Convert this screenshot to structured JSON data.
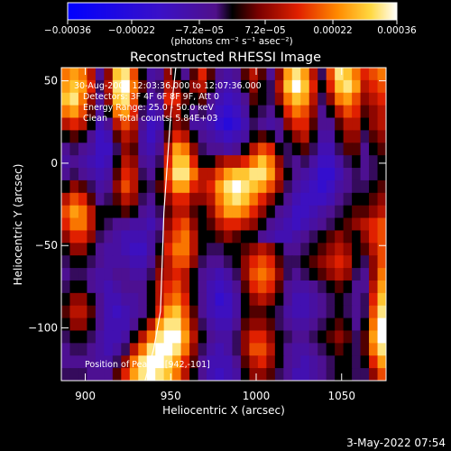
{
  "chart_data": {
    "type": "heatmap",
    "title": "Reconstructed RHESSI Image",
    "xlabel": "Heliocentric X (arcsec)",
    "ylabel": "Heliocentric Y (arcsec)",
    "xlim": [
      886,
      1076
    ],
    "ylim": [
      -132,
      58
    ],
    "x_ticks": [
      900,
      950,
      1000,
      1050
    ],
    "y_ticks": [
      50,
      0,
      -50,
      -100
    ],
    "x_tick_labels": [
      "900",
      "950",
      "1000",
      "1050"
    ],
    "y_tick_labels": [
      "50",
      "0",
      "−50",
      "−100"
    ],
    "colorbar": {
      "range": [
        -0.00036,
        0.00036
      ],
      "ticks": [
        -0.00036,
        -0.00022,
        -7.2e-05,
        7.2e-05,
        0.00022,
        0.00036
      ],
      "tick_labels": [
        "−0.00036",
        "−0.00022",
        "−7.2e−05",
        "7.2e−05",
        "0.00022",
        "0.00036"
      ],
      "unit_label": "(photons cm⁻² s⁻¹ asec⁻²)"
    },
    "annotations": [
      "30-Aug-2004 12:03:36.000 to 12:07:36.000",
      "Detectors: 3F 4F 6F 8F 9F, Att 0",
      "Energy Range: 25.0 - 50.0 keV",
      "Clean    Total counts: 5.84E+03",
      "Position of Peak = [942,-101]"
    ],
    "peak": [
      942,
      -101
    ],
    "grid": false,
    "limb_curve": [
      [
        953,
        58
      ],
      [
        950,
        30
      ],
      [
        948,
        0
      ],
      [
        946,
        -30
      ],
      [
        945,
        -60
      ],
      [
        944,
        -90
      ],
      [
        940,
        -113
      ],
      [
        935,
        -132
      ]
    ],
    "values": [
      [
        0.6,
        0.7,
        0.6,
        0.3,
        -0.2,
        0.2,
        0.8,
        0.9,
        0.5,
        0.0,
        -0.3,
        -0.2,
        0.2,
        0.0,
        -0.2,
        0.1,
        0.4,
        0.1,
        -0.2,
        -0.3,
        -0.2,
        0.1,
        0.3,
        0.1,
        -0.2,
        0.2,
        0.7,
        0.9,
        0.7,
        0.3,
        -0.1,
        0.5,
        0.9,
        0.8,
        0.6,
        0.4,
        0.5,
        0.6
      ],
      [
        0.7,
        0.8,
        0.7,
        0.4,
        -0.1,
        0.3,
        0.9,
        1.0,
        0.6,
        0.1,
        -0.2,
        -0.1,
        0.3,
        0.2,
        0.0,
        0.2,
        0.3,
        0.0,
        -0.3,
        -0.4,
        -0.3,
        0.0,
        0.2,
        0.0,
        -0.1,
        0.3,
        0.8,
        1.0,
        0.8,
        0.4,
        0.0,
        0.4,
        0.8,
        0.9,
        0.7,
        0.3,
        0.4,
        0.5
      ],
      [
        0.8,
        0.9,
        0.6,
        0.2,
        -0.2,
        0.2,
        0.8,
        0.9,
        0.5,
        0.0,
        -0.3,
        -0.2,
        0.4,
        0.4,
        0.1,
        0.0,
        0.1,
        -0.2,
        -0.4,
        -0.5,
        -0.4,
        -0.2,
        0.1,
        0.0,
        -0.1,
        0.2,
        0.6,
        0.8,
        0.7,
        0.3,
        -0.1,
        0.2,
        0.6,
        0.7,
        0.5,
        0.2,
        0.3,
        0.4
      ],
      [
        0.6,
        0.7,
        0.5,
        0.1,
        -0.3,
        0.0,
        0.6,
        0.7,
        0.4,
        -0.1,
        -0.4,
        -0.3,
        0.2,
        0.3,
        0.0,
        -0.2,
        -0.1,
        -0.3,
        -0.5,
        -0.6,
        -0.5,
        -0.3,
        0.0,
        -0.1,
        -0.2,
        0.0,
        0.4,
        0.6,
        0.5,
        0.2,
        -0.2,
        0.0,
        0.3,
        0.5,
        0.4,
        0.1,
        0.2,
        0.3
      ],
      [
        0.3,
        0.4,
        0.3,
        0.0,
        -0.4,
        -0.2,
        0.3,
        0.5,
        0.3,
        -0.2,
        -0.5,
        -0.4,
        0.0,
        0.2,
        0.1,
        -0.3,
        -0.3,
        -0.4,
        -0.6,
        -0.7,
        -0.6,
        -0.4,
        -0.1,
        -0.2,
        -0.3,
        -0.2,
        0.2,
        0.4,
        0.4,
        0.1,
        -0.2,
        -0.2,
        0.1,
        0.3,
        0.3,
        0.0,
        0.2,
        0.3
      ],
      [
        0.0,
        0.1,
        0.0,
        -0.2,
        -0.5,
        -0.4,
        0.1,
        0.3,
        0.2,
        -0.3,
        -0.5,
        -0.3,
        0.1,
        0.4,
        0.3,
        0.0,
        -0.2,
        -0.3,
        -0.4,
        -0.5,
        -0.4,
        -0.3,
        0.0,
        0.1,
        0.0,
        -0.2,
        0.0,
        0.2,
        0.3,
        0.0,
        -0.3,
        -0.3,
        0.0,
        0.2,
        0.2,
        -0.1,
        0.1,
        0.2
      ],
      [
        -0.2,
        -0.1,
        -0.2,
        -0.3,
        -0.5,
        -0.5,
        -0.1,
        0.2,
        0.1,
        -0.3,
        -0.4,
        -0.2,
        0.3,
        0.7,
        0.6,
        0.2,
        -0.1,
        -0.2,
        -0.2,
        -0.3,
        -0.2,
        0.0,
        0.3,
        0.5,
        0.4,
        0.0,
        -0.1,
        0.0,
        0.1,
        -0.1,
        -0.4,
        -0.4,
        -0.1,
        0.1,
        0.1,
        -0.2,
        0.0,
        0.1
      ],
      [
        -0.3,
        -0.2,
        -0.3,
        -0.4,
        -0.5,
        -0.4,
        0.0,
        0.3,
        0.2,
        -0.2,
        -0.3,
        -0.1,
        0.4,
        0.8,
        0.8,
        0.4,
        0.0,
        0.0,
        0.2,
        0.3,
        0.3,
        0.4,
        0.6,
        0.8,
        0.6,
        0.2,
        -0.1,
        -0.2,
        -0.1,
        -0.3,
        -0.5,
        -0.5,
        -0.3,
        -0.1,
        0.0,
        -0.2,
        -0.1,
        0.0
      ],
      [
        -0.2,
        -0.1,
        -0.2,
        -0.3,
        -0.4,
        -0.3,
        0.1,
        0.4,
        0.3,
        -0.1,
        -0.2,
        0.0,
        0.5,
        0.9,
        0.9,
        0.6,
        0.3,
        0.3,
        0.5,
        0.7,
        0.8,
        0.8,
        0.9,
        0.9,
        0.7,
        0.3,
        0.0,
        -0.2,
        -0.3,
        -0.4,
        -0.6,
        -0.6,
        -0.4,
        -0.2,
        -0.1,
        -0.2,
        -0.1,
        0.0
      ],
      [
        0.0,
        0.2,
        0.1,
        -0.1,
        -0.3,
        -0.2,
        0.2,
        0.5,
        0.3,
        0.0,
        -0.1,
        0.1,
        0.4,
        0.7,
        0.7,
        0.4,
        0.3,
        0.4,
        0.7,
        0.9,
        1.0,
        0.9,
        0.8,
        0.7,
        0.5,
        0.2,
        -0.1,
        -0.3,
        -0.4,
        -0.5,
        -0.6,
        -0.5,
        -0.3,
        -0.2,
        -0.1,
        -0.1,
        0.0,
        0.1
      ],
      [
        0.3,
        0.5,
        0.4,
        0.1,
        -0.2,
        -0.1,
        0.1,
        0.3,
        0.2,
        -0.1,
        -0.2,
        0.0,
        0.2,
        0.4,
        0.4,
        0.2,
        0.2,
        0.3,
        0.6,
        0.8,
        0.9,
        0.8,
        0.6,
        0.4,
        0.2,
        0.0,
        -0.2,
        -0.4,
        -0.5,
        -0.5,
        -0.5,
        -0.4,
        -0.2,
        -0.1,
        0.0,
        0.0,
        0.1,
        0.2
      ],
      [
        0.5,
        0.7,
        0.6,
        0.3,
        0.0,
        0.0,
        0.0,
        0.1,
        0.0,
        -0.2,
        -0.3,
        -0.1,
        0.1,
        0.3,
        0.3,
        0.1,
        0.0,
        0.2,
        0.5,
        0.7,
        0.7,
        0.6,
        0.4,
        0.2,
        0.0,
        -0.2,
        -0.3,
        -0.5,
        -0.5,
        -0.4,
        -0.3,
        -0.2,
        -0.1,
        0.0,
        0.1,
        0.1,
        0.2,
        0.3
      ],
      [
        0.4,
        0.6,
        0.6,
        0.3,
        0.0,
        -0.1,
        -0.2,
        -0.2,
        -0.3,
        -0.3,
        -0.4,
        -0.2,
        0.2,
        0.4,
        0.5,
        0.2,
        0.0,
        0.1,
        0.3,
        0.4,
        0.4,
        0.3,
        0.2,
        0.0,
        -0.2,
        -0.3,
        -0.4,
        -0.5,
        -0.4,
        -0.3,
        -0.2,
        -0.1,
        0.0,
        0.1,
        0.2,
        0.3,
        0.4,
        0.5
      ],
      [
        0.2,
        0.4,
        0.4,
        0.2,
        -0.1,
        -0.2,
        -0.3,
        -0.4,
        -0.4,
        -0.4,
        -0.3,
        -0.1,
        0.3,
        0.5,
        0.6,
        0.3,
        0.0,
        0.0,
        0.1,
        0.2,
        0.1,
        0.0,
        0.0,
        -0.2,
        -0.3,
        -0.4,
        -0.4,
        -0.3,
        -0.2,
        -0.1,
        0.0,
        0.1,
        0.2,
        0.1,
        0.0,
        0.2,
        0.4,
        0.5
      ],
      [
        0.0,
        0.2,
        0.2,
        0.0,
        -0.2,
        -0.3,
        -0.3,
        -0.4,
        -0.5,
        -0.5,
        -0.3,
        0.0,
        0.4,
        0.6,
        0.6,
        0.3,
        0.0,
        -0.1,
        -0.1,
        0.0,
        0.0,
        0.1,
        0.2,
        0.3,
        0.2,
        0.0,
        -0.2,
        -0.2,
        -0.1,
        0.0,
        0.1,
        0.2,
        0.3,
        0.2,
        0.0,
        0.1,
        0.3,
        0.5
      ],
      [
        -0.1,
        0.0,
        0.0,
        -0.1,
        -0.2,
        -0.3,
        -0.3,
        -0.3,
        -0.4,
        -0.4,
        -0.2,
        0.1,
        0.3,
        0.5,
        0.5,
        0.2,
        -0.1,
        -0.2,
        -0.2,
        -0.1,
        0.0,
        0.2,
        0.4,
        0.5,
        0.4,
        0.1,
        -0.1,
        -0.1,
        0.0,
        0.1,
        0.2,
        0.3,
        0.4,
        0.3,
        0.0,
        -0.1,
        0.2,
        0.5
      ],
      [
        -0.2,
        -0.1,
        -0.1,
        -0.2,
        -0.3,
        -0.3,
        -0.2,
        -0.2,
        -0.3,
        -0.3,
        -0.1,
        0.2,
        0.3,
        0.4,
        0.3,
        0.0,
        -0.2,
        -0.3,
        -0.4,
        -0.3,
        -0.1,
        0.2,
        0.5,
        0.6,
        0.5,
        0.2,
        -0.1,
        -0.2,
        -0.1,
        0.0,
        0.1,
        0.2,
        0.3,
        0.2,
        -0.1,
        -0.2,
        0.2,
        0.6
      ],
      [
        -0.1,
        0.0,
        0.0,
        -0.2,
        -0.3,
        -0.4,
        -0.3,
        -0.2,
        -0.2,
        -0.2,
        0.0,
        0.3,
        0.4,
        0.5,
        0.3,
        0.0,
        -0.2,
        -0.4,
        -0.5,
        -0.4,
        -0.2,
        0.1,
        0.4,
        0.5,
        0.4,
        0.1,
        -0.2,
        -0.3,
        -0.3,
        -0.2,
        -0.1,
        0.0,
        0.1,
        0.0,
        -0.2,
        -0.2,
        0.3,
        0.7
      ],
      [
        0.0,
        0.2,
        0.2,
        0.0,
        -0.2,
        -0.4,
        -0.4,
        -0.3,
        -0.3,
        -0.2,
        0.0,
        0.3,
        0.5,
        0.6,
        0.4,
        0.0,
        -0.2,
        -0.4,
        -0.6,
        -0.5,
        -0.3,
        0.0,
        0.2,
        0.3,
        0.2,
        0.0,
        -0.2,
        -0.4,
        -0.4,
        -0.3,
        -0.2,
        -0.1,
        0.0,
        -0.1,
        -0.2,
        -0.1,
        0.4,
        0.8
      ],
      [
        0.1,
        0.3,
        0.3,
        0.1,
        -0.2,
        -0.4,
        -0.5,
        -0.4,
        -0.3,
        -0.2,
        0.0,
        0.4,
        0.7,
        0.8,
        0.5,
        0.1,
        -0.2,
        -0.4,
        -0.5,
        -0.5,
        -0.3,
        0.0,
        0.1,
        0.1,
        0.0,
        -0.1,
        -0.3,
        -0.4,
        -0.4,
        -0.3,
        -0.2,
        -0.1,
        0.0,
        -0.1,
        -0.2,
        -0.1,
        0.5,
        0.9
      ],
      [
        0.0,
        0.2,
        0.2,
        0.0,
        -0.2,
        -0.4,
        -0.4,
        -0.4,
        -0.2,
        0.0,
        0.3,
        0.7,
        0.9,
        0.9,
        0.6,
        0.2,
        -0.1,
        -0.3,
        -0.4,
        -0.4,
        -0.2,
        0.1,
        0.2,
        0.2,
        0.1,
        -0.1,
        -0.2,
        -0.3,
        -0.3,
        -0.2,
        -0.1,
        0.0,
        0.1,
        0.0,
        -0.2,
        0.0,
        0.6,
        1.0
      ],
      [
        -0.1,
        0.0,
        0.0,
        -0.1,
        -0.3,
        -0.4,
        -0.4,
        -0.3,
        0.0,
        0.3,
        0.6,
        0.9,
        1.0,
        1.0,
        0.7,
        0.3,
        0.0,
        -0.2,
        -0.3,
        -0.3,
        -0.1,
        0.2,
        0.4,
        0.4,
        0.2,
        0.0,
        -0.1,
        -0.2,
        -0.2,
        -0.1,
        0.0,
        0.1,
        0.2,
        0.1,
        -0.1,
        0.1,
        0.7,
        1.0
      ],
      [
        -0.2,
        -0.1,
        -0.1,
        -0.2,
        -0.3,
        -0.4,
        -0.3,
        -0.1,
        0.3,
        0.6,
        0.9,
        1.0,
        1.0,
        0.9,
        0.6,
        0.2,
        -0.1,
        -0.3,
        -0.4,
        -0.3,
        -0.1,
        0.2,
        0.5,
        0.5,
        0.3,
        0.0,
        -0.2,
        -0.3,
        -0.3,
        -0.2,
        -0.1,
        0.0,
        0.1,
        0.0,
        -0.1,
        0.1,
        0.6,
        0.9
      ],
      [
        -0.2,
        -0.2,
        -0.2,
        -0.2,
        -0.3,
        -0.3,
        -0.1,
        0.2,
        0.6,
        0.9,
        1.0,
        1.0,
        0.9,
        0.7,
        0.4,
        0.1,
        -0.2,
        -0.4,
        -0.4,
        -0.4,
        -0.2,
        0.1,
        0.3,
        0.4,
        0.2,
        0.0,
        -0.2,
        -0.3,
        -0.4,
        -0.3,
        -0.2,
        -0.1,
        0.0,
        0.0,
        -0.1,
        0.0,
        0.4,
        0.7
      ],
      [
        -0.1,
        -0.1,
        -0.1,
        -0.2,
        -0.2,
        -0.2,
        0.1,
        0.4,
        0.7,
        0.9,
        1.0,
        0.9,
        0.8,
        0.6,
        0.3,
        0.0,
        -0.2,
        -0.4,
        -0.5,
        -0.4,
        -0.3,
        0.0,
        0.2,
        0.2,
        0.1,
        -0.1,
        -0.2,
        -0.4,
        -0.4,
        -0.3,
        -0.2,
        -0.1,
        0.0,
        0.0,
        -0.1,
        -0.1,
        0.2,
        0.5
      ]
    ]
  },
  "footer": {
    "timestamp": "3-May-2022 07:54"
  }
}
